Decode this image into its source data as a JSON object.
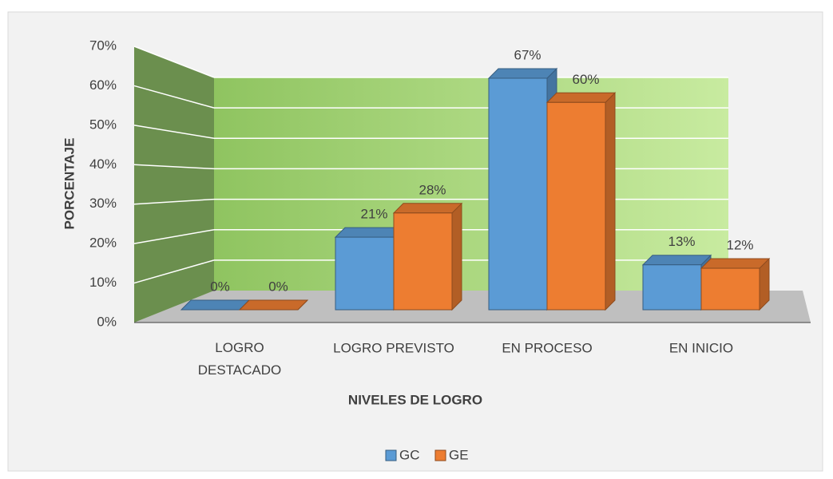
{
  "chart_data": {
    "type": "bar3d",
    "categories": [
      "LOGRO DESTACADO",
      "LOGRO PREVISTO",
      "EN PROCESO",
      "EN INICIO"
    ],
    "series": [
      {
        "name": "GC",
        "color": "#5b9bd5",
        "values": [
          0,
          21,
          67,
          13
        ],
        "value_labels": [
          "0%",
          "21%",
          "67%",
          "13%"
        ]
      },
      {
        "name": "GE",
        "color": "#ed7d31",
        "values": [
          0,
          28,
          60,
          12
        ],
        "value_labels": [
          "0%",
          "28%",
          "60%",
          "12%"
        ]
      }
    ],
    "xlabel": "NIVELES DE LOGRO",
    "ylabel": "PORCENTAJE",
    "ylim": [
      0,
      70
    ],
    "yticks": [
      {
        "value": 0,
        "label": "0%"
      },
      {
        "value": 10,
        "label": "10%"
      },
      {
        "value": 20,
        "label": "20%"
      },
      {
        "value": 30,
        "label": "30%"
      },
      {
        "value": 40,
        "label": "40%"
      },
      {
        "value": 50,
        "label": "50%"
      },
      {
        "value": 60,
        "label": "60%"
      },
      {
        "value": 70,
        "label": "70%"
      }
    ],
    "grid": true,
    "legend": "bottom"
  }
}
